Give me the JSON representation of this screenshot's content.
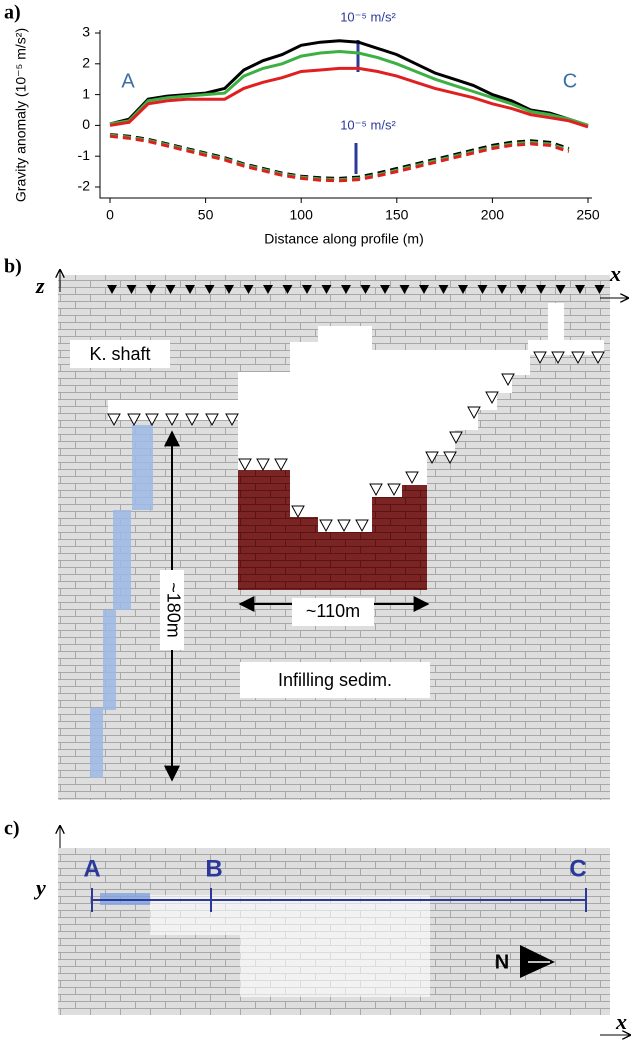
{
  "chart_data": {
    "type": "line",
    "panel_label": "a)",
    "xlabel": "Distance along profile (m)",
    "ylabel": "Gravity anomaly (10⁻⁵ m/s²)",
    "annotations": [
      "A",
      "C",
      "10⁻⁵ m/s²",
      "10⁻⁵ m/s²"
    ],
    "x": [
      0,
      10,
      20,
      30,
      40,
      50,
      60,
      70,
      80,
      90,
      100,
      110,
      120,
      130,
      140,
      150,
      160,
      170,
      180,
      190,
      200,
      210,
      220,
      230,
      240,
      250
    ],
    "series": [
      {
        "color": "#000000",
        "dash": false,
        "values": [
          0.05,
          0.2,
          0.85,
          0.95,
          1.0,
          1.05,
          1.2,
          1.8,
          2.1,
          2.3,
          2.6,
          2.7,
          2.75,
          2.7,
          2.5,
          2.3,
          2.0,
          1.7,
          1.5,
          1.3,
          1.0,
          0.8,
          0.5,
          0.4,
          0.2,
          0.0
        ]
      },
      {
        "color": "#3cb043",
        "dash": false,
        "values": [
          0.05,
          0.15,
          0.8,
          0.9,
          0.95,
          1.0,
          1.05,
          1.6,
          1.85,
          2.0,
          2.25,
          2.35,
          2.4,
          2.35,
          2.2,
          2.0,
          1.75,
          1.5,
          1.3,
          1.1,
          0.9,
          0.7,
          0.45,
          0.35,
          0.2,
          0.0
        ]
      },
      {
        "color": "#e02020",
        "dash": false,
        "values": [
          0.0,
          0.1,
          0.7,
          0.8,
          0.85,
          0.85,
          0.85,
          1.2,
          1.4,
          1.55,
          1.75,
          1.8,
          1.85,
          1.85,
          1.75,
          1.6,
          1.4,
          1.2,
          1.05,
          0.9,
          0.7,
          0.55,
          0.35,
          0.25,
          0.15,
          -0.05
        ]
      },
      {
        "color": "#000000",
        "dash": true,
        "values": [
          -0.3,
          -0.35,
          -0.45,
          -0.6,
          -0.75,
          -0.9,
          -1.05,
          -1.25,
          -1.4,
          -1.55,
          -1.65,
          -1.7,
          -1.72,
          -1.68,
          -1.55,
          -1.4,
          -1.25,
          -1.1,
          -0.95,
          -0.8,
          -0.65,
          -0.55,
          -0.5,
          -0.55,
          -0.75,
          null
        ]
      },
      {
        "color": "#3cb043",
        "dash": true,
        "values": [
          -0.32,
          -0.38,
          -0.48,
          -0.63,
          -0.78,
          -0.93,
          -1.08,
          -1.28,
          -1.43,
          -1.58,
          -1.68,
          -1.74,
          -1.76,
          -1.72,
          -1.6,
          -1.45,
          -1.3,
          -1.15,
          -1.0,
          -0.85,
          -0.7,
          -0.6,
          -0.55,
          -0.6,
          -0.8,
          null
        ]
      },
      {
        "color": "#e02020",
        "dash": true,
        "values": [
          -0.35,
          -0.42,
          -0.52,
          -0.67,
          -0.82,
          -0.97,
          -1.12,
          -1.32,
          -1.47,
          -1.62,
          -1.72,
          -1.78,
          -1.8,
          -1.76,
          -1.64,
          -1.5,
          -1.35,
          -1.2,
          -1.05,
          -0.9,
          -0.75,
          -0.65,
          -0.6,
          -0.65,
          -0.85,
          null
        ]
      }
    ],
    "xlim": [
      0,
      250
    ],
    "xticks": [
      0,
      50,
      100,
      150,
      200,
      250
    ],
    "ylim": [
      -2,
      3
    ],
    "yticks": [
      -2,
      -1,
      0,
      1,
      2,
      3
    ]
  },
  "panel_b": {
    "label": "b)",
    "z_axis": "z",
    "x_axis": "x",
    "shaft": "K. shaft",
    "depth": "~180m",
    "width": "~110m",
    "infill": "Infilling sedim."
  },
  "panel_c": {
    "label": "c)",
    "y_axis": "y",
    "x_axis": "x",
    "points": [
      "A",
      "B",
      "C"
    ],
    "north": "N"
  }
}
